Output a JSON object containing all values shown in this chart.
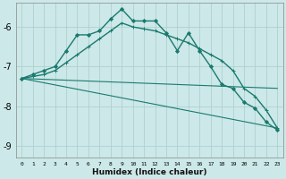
{
  "xlabel": "Humidex (Indice chaleur)",
  "background_color": "#cce8e8",
  "grid_color": "#aacccc",
  "line_color": "#1a7a6e",
  "xlim": [
    -0.5,
    23.5
  ],
  "ylim": [
    -9.3,
    -5.4
  ],
  "yticks": [
    -9,
    -8,
    -7,
    -6
  ],
  "xticks": [
    0,
    1,
    2,
    3,
    4,
    5,
    6,
    7,
    8,
    9,
    10,
    11,
    12,
    13,
    14,
    15,
    16,
    17,
    18,
    19,
    20,
    21,
    22,
    23
  ],
  "series": [
    {
      "x": [
        0,
        1,
        2,
        3,
        4,
        5,
        6,
        7,
        8,
        9,
        10,
        11,
        12,
        13,
        14,
        15,
        16,
        17,
        18,
        19,
        20,
        21,
        22,
        23
      ],
      "y": [
        -7.3,
        -7.2,
        -7.1,
        -7.0,
        -6.6,
        -6.2,
        -6.2,
        -6.1,
        -5.8,
        -5.55,
        -5.85,
        -5.85,
        -5.85,
        -6.15,
        -6.6,
        -6.15,
        -6.6,
        -7.0,
        -7.45,
        -7.55,
        -7.9,
        -8.05,
        -8.4,
        -8.6
      ],
      "marker": "D",
      "markersize": 2.0,
      "linewidth": 1.0
    },
    {
      "x": [
        0,
        1,
        2,
        3,
        4,
        5,
        6,
        7,
        8,
        9,
        10,
        11,
        12,
        13,
        14,
        15,
        16,
        17,
        18,
        19,
        20,
        21,
        22,
        23
      ],
      "y": [
        -7.3,
        -7.25,
        -7.2,
        -7.1,
        -6.9,
        -6.7,
        -6.5,
        -6.3,
        -6.1,
        -5.9,
        -6.0,
        -6.05,
        -6.1,
        -6.2,
        -6.3,
        -6.4,
        -6.55,
        -6.7,
        -6.85,
        -7.1,
        -7.55,
        -7.75,
        -8.1,
        -8.55
      ],
      "marker": "+",
      "markersize": 3.5,
      "linewidth": 1.0
    },
    {
      "x": [
        0,
        23
      ],
      "y": [
        -7.3,
        -7.55
      ],
      "marker": null,
      "linewidth": 0.8
    },
    {
      "x": [
        0,
        23
      ],
      "y": [
        -7.3,
        -8.55
      ],
      "marker": null,
      "linewidth": 0.8
    }
  ]
}
